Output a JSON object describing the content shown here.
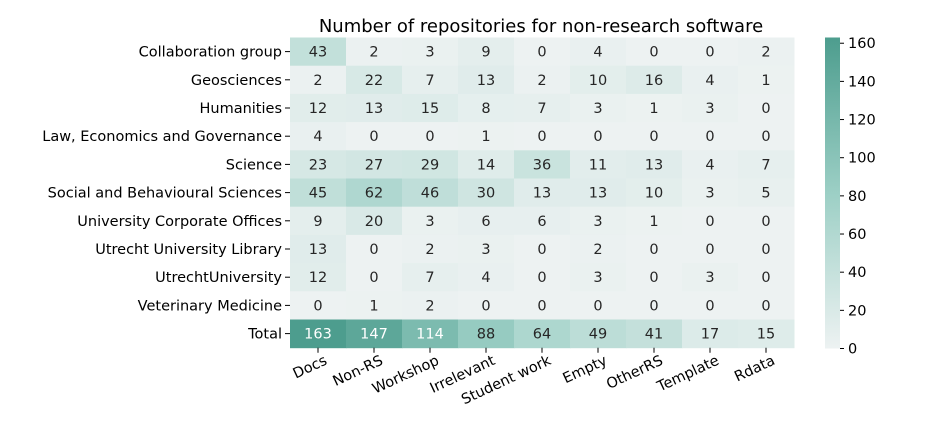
{
  "chart_data": {
    "type": "heatmap",
    "title": "Number of repositories for non-research software",
    "xlabel": "",
    "ylabel": "",
    "columns": [
      "Docs",
      "Non-RS",
      "Workshop",
      "Irrelevant",
      "Student work",
      "Empty",
      "OtherRS",
      "Template",
      "Rdata"
    ],
    "rows": [
      "Collaboration group",
      "Geosciences",
      "Humanities",
      "Law, Economics and Governance",
      "Science",
      "Social and Behavioural Sciences",
      "University Corporate Offices",
      "Utrecht University Library",
      "UtrechtUniversity",
      "Veterinary Medicine",
      "Total"
    ],
    "values": [
      [
        43,
        2,
        3,
        9,
        0,
        4,
        0,
        0,
        2
      ],
      [
        2,
        22,
        7,
        13,
        2,
        10,
        16,
        4,
        1
      ],
      [
        12,
        13,
        15,
        8,
        7,
        3,
        1,
        3,
        0
      ],
      [
        4,
        0,
        0,
        1,
        0,
        0,
        0,
        0,
        0
      ],
      [
        23,
        27,
        29,
        14,
        36,
        11,
        13,
        4,
        7
      ],
      [
        45,
        62,
        46,
        30,
        13,
        13,
        10,
        3,
        5
      ],
      [
        9,
        20,
        3,
        6,
        6,
        3,
        1,
        0,
        0
      ],
      [
        13,
        0,
        2,
        3,
        0,
        2,
        0,
        0,
        0
      ],
      [
        12,
        0,
        7,
        4,
        0,
        3,
        0,
        3,
        0
      ],
      [
        0,
        1,
        2,
        0,
        0,
        0,
        0,
        0,
        0
      ],
      [
        163,
        147,
        114,
        88,
        64,
        49,
        41,
        17,
        15
      ]
    ],
    "color_range": [
      0,
      163
    ],
    "colors": {
      "low": "#edf2f2",
      "mid": "#9ccfc5",
      "high": "#4d9d8e"
    },
    "colorbar": {
      "placement": "right",
      "ticks": [
        0,
        20,
        40,
        60,
        80,
        100,
        120,
        140,
        160
      ]
    },
    "grid": false
  }
}
